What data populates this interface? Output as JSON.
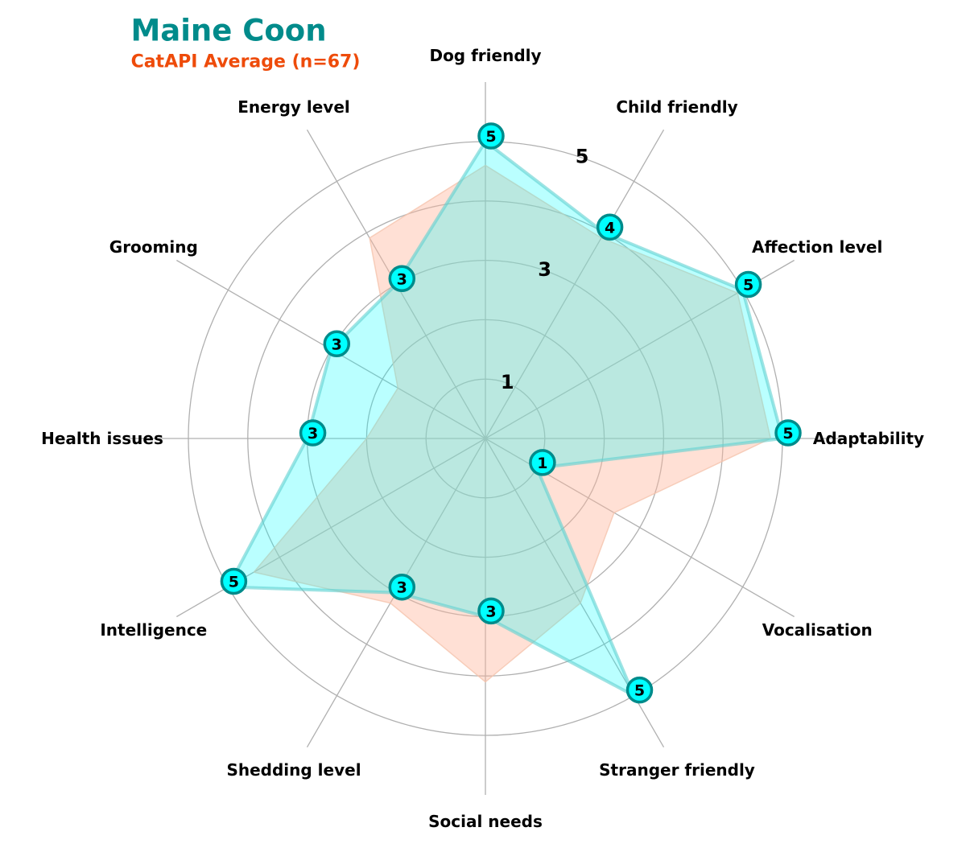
{
  "chart_data": {
    "type": "radar",
    "title": "Maine Coon",
    "subtitle": "CatAPI Average (n=67)",
    "axes": [
      "Dog friendly",
      "Child friendly",
      "Affection level",
      "Adaptability",
      "Vocalisation",
      "Stranger friendly",
      "Social needs",
      "Shedding level",
      "Intelligence",
      "Health issues",
      "Grooming",
      "Energy level"
    ],
    "r_range": [
      0,
      5
    ],
    "grid_rings": [
      1,
      2,
      3,
      4,
      5
    ],
    "ring_labels": [
      "1",
      "3",
      "5"
    ],
    "grid": true,
    "series": [
      {
        "values": [
          5,
          4,
          5,
          5,
          1,
          5,
          3,
          3,
          5,
          3,
          3,
          3
        ],
        "value_labels": [
          "5",
          "4",
          "5",
          "5",
          "1",
          "5",
          "3",
          "3",
          "5",
          "3",
          "3",
          "3"
        ],
        "fill": "#00ffff",
        "stroke": "#5fd0d0",
        "marker_fill": "#00ffff",
        "marker_edge": "#008b8b"
      },
      {
        "values": [
          4.6,
          3.9,
          4.9,
          4.8,
          2.5,
          3.2,
          4.1,
          3.2,
          4.5,
          2.0,
          1.7,
          3.9
        ],
        "fill": "#ffb59a",
        "stroke": "#f5c4ae"
      }
    ]
  },
  "colors": {
    "title": "#008b8b",
    "subtitle": "#ee4b0a",
    "grid": "#b0b0b0",
    "text": "#000000"
  }
}
